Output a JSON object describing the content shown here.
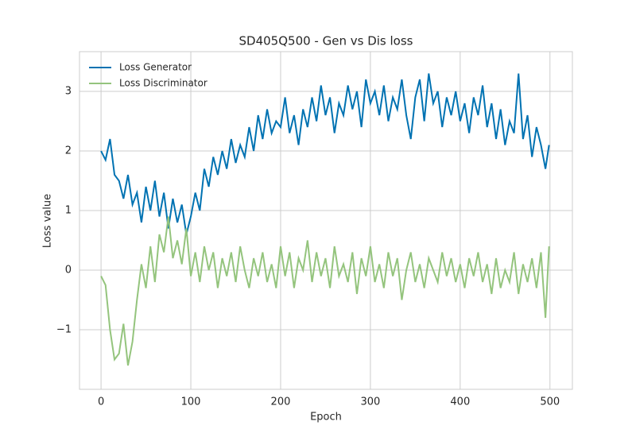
{
  "chart_data": {
    "type": "line",
    "title": "SD405Q500 - Gen vs Dis loss",
    "xlabel": "Epoch",
    "ylabel": "Loss value",
    "x": [
      0,
      5,
      10,
      15,
      20,
      25,
      30,
      35,
      40,
      45,
      50,
      55,
      60,
      65,
      70,
      75,
      80,
      85,
      90,
      95,
      100,
      105,
      110,
      115,
      120,
      125,
      130,
      135,
      140,
      145,
      150,
      155,
      160,
      165,
      170,
      175,
      180,
      185,
      190,
      195,
      200,
      205,
      210,
      215,
      220,
      225,
      230,
      235,
      240,
      245,
      250,
      255,
      260,
      265,
      270,
      275,
      280,
      285,
      290,
      295,
      300,
      305,
      310,
      315,
      320,
      325,
      330,
      335,
      340,
      345,
      350,
      355,
      360,
      365,
      370,
      375,
      380,
      385,
      390,
      395,
      400,
      405,
      410,
      415,
      420,
      425,
      430,
      435,
      440,
      445,
      450,
      455,
      460,
      465,
      470,
      475,
      480,
      485,
      490,
      495,
      499
    ],
    "series": [
      {
        "name": "Loss Generator",
        "color": "#0072b2",
        "values": [
          2.0,
          1.85,
          2.2,
          1.6,
          1.5,
          1.2,
          1.6,
          1.1,
          1.3,
          0.8,
          1.4,
          1.0,
          1.5,
          0.9,
          1.3,
          0.7,
          1.2,
          0.8,
          1.1,
          0.6,
          0.9,
          1.3,
          1.0,
          1.7,
          1.4,
          1.9,
          1.6,
          2.0,
          1.7,
          2.2,
          1.8,
          2.1,
          1.9,
          2.4,
          2.0,
          2.6,
          2.2,
          2.7,
          2.3,
          2.5,
          2.4,
          2.9,
          2.3,
          2.6,
          2.1,
          2.7,
          2.4,
          2.9,
          2.5,
          3.1,
          2.6,
          2.9,
          2.3,
          2.8,
          2.6,
          3.1,
          2.7,
          3.0,
          2.4,
          3.2,
          2.8,
          3.0,
          2.6,
          3.1,
          2.5,
          2.9,
          2.7,
          3.2,
          2.6,
          2.2,
          2.9,
          3.2,
          2.5,
          3.3,
          2.8,
          3.0,
          2.4,
          2.9,
          2.6,
          3.0,
          2.5,
          2.8,
          2.3,
          2.9,
          2.6,
          3.1,
          2.4,
          2.8,
          2.2,
          2.7,
          2.1,
          2.5,
          2.3,
          3.3,
          2.2,
          2.6,
          1.9,
          2.4,
          2.1,
          1.7,
          2.1
        ]
      },
      {
        "name": "Loss Discriminator",
        "color": "#94c47d",
        "values": [
          -0.1,
          -0.25,
          -1.0,
          -1.5,
          -1.4,
          -0.9,
          -1.6,
          -1.2,
          -0.5,
          0.1,
          -0.3,
          0.4,
          -0.2,
          0.6,
          0.3,
          0.9,
          0.2,
          0.5,
          0.1,
          0.7,
          -0.1,
          0.3,
          -0.2,
          0.4,
          0.0,
          0.3,
          -0.3,
          0.2,
          -0.1,
          0.3,
          -0.2,
          0.4,
          0.0,
          -0.3,
          0.2,
          -0.1,
          0.3,
          -0.2,
          0.1,
          -0.3,
          0.4,
          -0.1,
          0.3,
          -0.3,
          0.2,
          0.0,
          0.5,
          -0.2,
          0.3,
          -0.1,
          0.2,
          -0.3,
          0.4,
          -0.1,
          0.1,
          -0.2,
          0.3,
          -0.4,
          0.2,
          -0.1,
          0.4,
          -0.2,
          0.1,
          -0.3,
          0.3,
          -0.1,
          0.2,
          -0.5,
          0.0,
          0.3,
          -0.2,
          0.1,
          -0.3,
          0.2,
          0.0,
          -0.2,
          0.3,
          -0.1,
          0.2,
          -0.2,
          0.1,
          -0.3,
          0.2,
          -0.1,
          0.3,
          -0.2,
          0.1,
          -0.4,
          0.2,
          -0.3,
          0.0,
          -0.2,
          0.3,
          -0.4,
          0.1,
          -0.2,
          0.2,
          -0.3,
          0.3,
          -0.8,
          0.4
        ]
      }
    ],
    "xlim": [
      -24,
      525
    ],
    "ylim": [
      -2,
      3.667
    ],
    "xticks": [
      0,
      100,
      200,
      300,
      400,
      500
    ],
    "yticks": [
      {
        "value": -1,
        "label": "−1"
      },
      0,
      1,
      2,
      3
    ],
    "grid": true,
    "legend": "upper left"
  }
}
